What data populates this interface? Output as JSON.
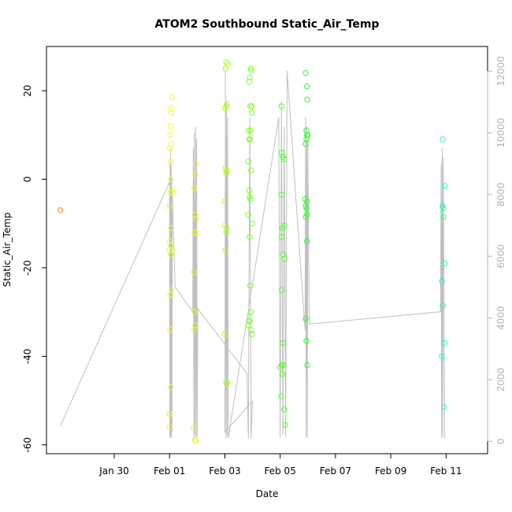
{
  "chart_data": {
    "type": "scatter",
    "title": "ATOM2 Southbound Static_Air_Temp",
    "xlabel": "Date",
    "ylabel": "Static_Air_Temp",
    "xlim": [
      -3.45,
      12.5
    ],
    "ylim": [
      -62,
      30
    ],
    "yticks": [
      -60,
      -40,
      -20,
      0,
      20
    ],
    "x_ticks": [
      {
        "pos": -1,
        "label": "Jan 30"
      },
      {
        "pos": 1,
        "label": "Feb 01"
      },
      {
        "pos": 3,
        "label": "Feb 03"
      },
      {
        "pos": 5,
        "label": "Feb 05"
      },
      {
        "pos": 7,
        "label": "Feb 07"
      },
      {
        "pos": 9,
        "label": "Feb 09"
      },
      {
        "pos": 11,
        "label": "Feb 11"
      }
    ],
    "y2lim": [
      -400,
      12800
    ],
    "y2ticks": [
      0,
      2000,
      4000,
      6000,
      8000,
      10000,
      12000
    ],
    "grid": false,
    "series": [
      {
        "color": "#ff7f2a",
        "points": [
          [
            -2.95,
            -7
          ]
        ]
      },
      {
        "color": "#e6ff33",
        "points": [
          [
            1.0,
            -56
          ],
          [
            1.02,
            -53
          ],
          [
            1.0,
            -53
          ],
          [
            1.05,
            -47
          ],
          [
            1.02,
            -34
          ],
          [
            1.03,
            -26
          ],
          [
            1.08,
            -25
          ],
          [
            1.0,
            -16
          ],
          [
            1.05,
            -17
          ],
          [
            1.1,
            -16
          ],
          [
            1.04,
            -15
          ],
          [
            1.0,
            -14
          ],
          [
            1.06,
            -11
          ],
          [
            1.03,
            -3
          ],
          [
            1.08,
            -2
          ],
          [
            1.1,
            -3
          ],
          [
            1.0,
            -6
          ],
          [
            1.05,
            0
          ],
          [
            1.04,
            4
          ],
          [
            1.02,
            7
          ],
          [
            1.06,
            8
          ],
          [
            1.03,
            10
          ],
          [
            1.04,
            12
          ],
          [
            1.07,
            15
          ],
          [
            1.05,
            16
          ],
          [
            1.08,
            18.5
          ]
        ]
      },
      {
        "color": "#d4ff2a",
        "points": [
          [
            1.88,
            -56
          ],
          [
            1.92,
            -59
          ],
          [
            1.95,
            -59
          ],
          [
            1.9,
            -34
          ],
          [
            1.93,
            -33
          ],
          [
            1.9,
            -30
          ],
          [
            1.88,
            -21
          ],
          [
            1.9,
            -12
          ],
          [
            1.95,
            -12
          ],
          [
            1.92,
            -8
          ],
          [
            1.97,
            -9
          ],
          [
            1.9,
            -2
          ],
          [
            1.93,
            1
          ],
          [
            1.95,
            3.5
          ]
        ]
      },
      {
        "color": "#a8ff1e",
        "points": [
          [
            3.0,
            -35
          ],
          [
            3.05,
            -46
          ],
          [
            3.1,
            -46
          ],
          [
            3.02,
            -16
          ],
          [
            3.05,
            -12
          ],
          [
            3.08,
            -11
          ],
          [
            3.0,
            -10.5
          ],
          [
            3.0,
            -5
          ],
          [
            3.05,
            1.5
          ],
          [
            3.08,
            2
          ],
          [
            3.02,
            2.5
          ],
          [
            3.0,
            16
          ],
          [
            3.05,
            16.5
          ],
          [
            3.08,
            17
          ],
          [
            3.03,
            25
          ],
          [
            3.05,
            26.5
          ],
          [
            3.1,
            26
          ]
        ]
      },
      {
        "color": "#80ff2a",
        "points": [
          [
            3.85,
            -33
          ],
          [
            3.88,
            -32
          ],
          [
            3.9,
            -32
          ],
          [
            3.95,
            -34
          ],
          [
            3.98,
            -35
          ],
          [
            3.95,
            -30
          ],
          [
            3.92,
            -24
          ],
          [
            3.9,
            -13
          ],
          [
            3.98,
            -10
          ],
          [
            3.85,
            -8
          ],
          [
            3.9,
            -4
          ],
          [
            3.93,
            -4.5
          ],
          [
            3.88,
            -2.5
          ],
          [
            3.85,
            4
          ],
          [
            3.95,
            2
          ],
          [
            3.92,
            9
          ],
          [
            3.88,
            9
          ],
          [
            3.86,
            11
          ],
          [
            3.93,
            11
          ],
          [
            3.98,
            15
          ],
          [
            3.92,
            16.5
          ],
          [
            3.97,
            16.5
          ],
          [
            3.88,
            22
          ],
          [
            3.9,
            23
          ],
          [
            3.95,
            24.5
          ],
          [
            3.95,
            25
          ]
        ]
      },
      {
        "color": "#55ff2a",
        "points": [
          [
            5.0,
            -42.5
          ],
          [
            5.05,
            -42
          ],
          [
            5.08,
            -44
          ],
          [
            5.1,
            -42
          ],
          [
            5.03,
            -49
          ],
          [
            5.15,
            -52
          ],
          [
            5.18,
            -55.5
          ],
          [
            5.1,
            -37
          ],
          [
            5.05,
            -25
          ],
          [
            5.1,
            -17
          ],
          [
            5.15,
            -18
          ],
          [
            5.05,
            -13
          ],
          [
            5.08,
            -11
          ],
          [
            5.15,
            -10.5
          ],
          [
            5.05,
            -3.5
          ],
          [
            5.05,
            6
          ],
          [
            5.1,
            5
          ],
          [
            5.15,
            4.5
          ],
          [
            5.05,
            16.5
          ]
        ]
      },
      {
        "color": "#2aff2a",
        "points": [
          [
            5.92,
            -31.5
          ],
          [
            5.95,
            -36.5
          ],
          [
            5.98,
            -42
          ],
          [
            5.97,
            -14
          ],
          [
            5.93,
            -8.5
          ],
          [
            5.98,
            -8
          ],
          [
            5.92,
            -6
          ],
          [
            5.95,
            -6.5
          ],
          [
            5.97,
            -5
          ],
          [
            5.9,
            -4.5
          ],
          [
            5.92,
            8
          ],
          [
            5.95,
            9
          ],
          [
            5.97,
            10
          ],
          [
            6.0,
            10
          ],
          [
            5.95,
            11
          ],
          [
            5.98,
            18
          ],
          [
            5.97,
            21
          ],
          [
            5.92,
            24
          ]
        ]
      },
      {
        "color": "#2aff99",
        "points": [
          [
            10.85,
            -40
          ],
          [
            10.88,
            -28.5
          ],
          [
            10.85,
            -23
          ],
          [
            10.95,
            -19
          ],
          [
            10.95,
            -37
          ],
          [
            10.92,
            -51.5
          ],
          [
            10.87,
            -6
          ],
          [
            10.9,
            -6.5
          ],
          [
            10.9,
            -8.5
          ],
          [
            10.95,
            -1.5
          ],
          [
            10.88,
            9
          ]
        ]
      }
    ],
    "altitude_series": {
      "axis": "right",
      "color": "#c0c0c0",
      "x": [
        -2.95,
        1.0,
        1.01,
        1.02,
        1.03,
        1.04,
        1.05,
        1.06,
        1.07,
        1.08,
        1.09,
        1.1,
        1.2,
        1.84,
        1.86,
        1.88,
        1.9,
        1.92,
        1.94,
        1.96,
        1.98,
        2.0,
        2.02,
        3.8,
        3.85,
        3.9,
        3.95,
        4.0,
        3.0,
        3.02,
        3.04,
        3.06,
        3.08,
        3.1,
        3.12,
        4.95,
        5.0,
        5.05,
        5.1,
        5.15,
        5.2,
        5.25,
        5.9,
        5.92,
        5.94,
        5.96,
        5.98,
        6.0,
        6.05,
        10.8,
        10.82,
        10.84,
        10.86,
        10.88,
        10.9,
        10.95
      ],
      "y": [
        500,
        8400,
        100,
        9000,
        200,
        9500,
        150,
        9000,
        100,
        8500,
        300,
        8000,
        5000,
        4200,
        9500,
        100,
        10000,
        200,
        10200,
        100,
        9800,
        150,
        4300,
        2200,
        100,
        10500,
        100,
        1300,
        300,
        12000,
        100,
        11000,
        200,
        10500,
        100,
        10500,
        100,
        11000,
        200,
        10200,
        150,
        12000,
        3600,
        10500,
        100,
        10200,
        150,
        9800,
        3800,
        4200,
        9000,
        100,
        9500,
        150,
        9200,
        100
      ]
    }
  }
}
